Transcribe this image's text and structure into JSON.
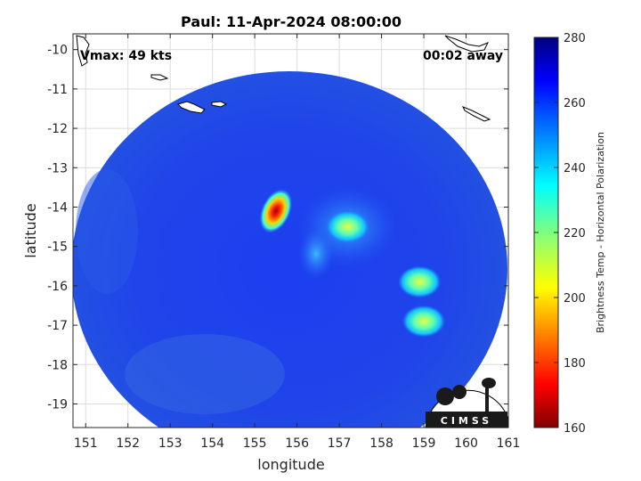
{
  "chart_data": {
    "type": "heatmap",
    "title": "Paul: 11-Apr-2024 08:00:00",
    "xlabel": "longitude",
    "ylabel": "latitude",
    "xlim": [
      150.7,
      161
    ],
    "ylim": [
      -19.6,
      -9.6
    ],
    "xticks": [
      "151",
      "152",
      "153",
      "154",
      "155",
      "156",
      "157",
      "158",
      "159",
      "160",
      "161"
    ],
    "yticks": [
      "-10",
      "-11",
      "-12",
      "-13",
      "-14",
      "-15",
      "-16",
      "-17",
      "-18",
      "-19"
    ],
    "grid": true,
    "annotations": {
      "vmax": "Vmax: 49 kts",
      "time_away": "00:02 away"
    },
    "colorbar": {
      "label": "Brightness Temp - Horizontal Polarization",
      "range": [
        160,
        280
      ],
      "ticks": [
        "280",
        "260",
        "240",
        "220",
        "200",
        "180",
        "160"
      ]
    },
    "features": [
      {
        "lon": 155.5,
        "lat": -14.1,
        "value": 170
      },
      {
        "lon": 157.2,
        "lat": -14.5,
        "value": 235
      },
      {
        "lon": 158.9,
        "lat": -15.9,
        "value": 230
      },
      {
        "lon": 159.0,
        "lat": -16.9,
        "value": 228
      }
    ]
  },
  "logo": {
    "text": "CIMSS"
  }
}
